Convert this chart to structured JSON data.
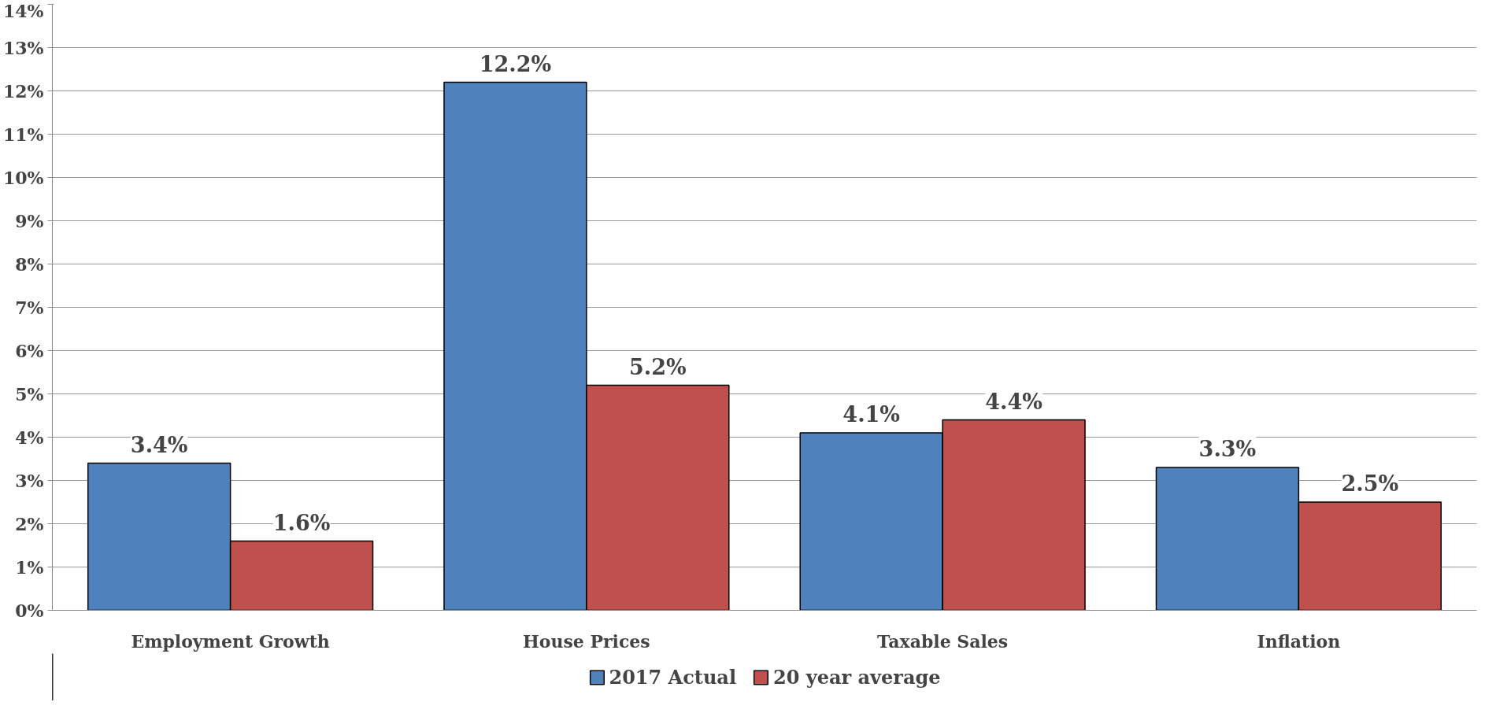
{
  "chart_data": {
    "type": "bar",
    "categories": [
      "Employment Growth",
      "House Prices",
      "Taxable Sales",
      "Inflation"
    ],
    "series": [
      {
        "name": "2017 Actual",
        "color": "#4f81bd",
        "values": [
          3.4,
          12.2,
          4.1,
          3.3
        ],
        "value_labels": [
          "3.4%",
          "12.2%",
          "4.1%",
          "3.3%"
        ]
      },
      {
        "name": "20 year average",
        "color": "#c0504d",
        "values": [
          1.6,
          5.2,
          4.4,
          2.5
        ],
        "value_labels": [
          "1.6%",
          "5.2%",
          "4.4%",
          "2.5%"
        ]
      }
    ],
    "ylim": [
      0,
      14
    ],
    "yticks": [
      {
        "value": 0,
        "label": "0%"
      },
      {
        "value": 1,
        "label": "1%"
      },
      {
        "value": 2,
        "label": "2%"
      },
      {
        "value": 3,
        "label": "3%"
      },
      {
        "value": 4,
        "label": "4%"
      },
      {
        "value": 5,
        "label": "5%"
      },
      {
        "value": 6,
        "label": "6%"
      },
      {
        "value": 7,
        "label": "7%"
      },
      {
        "value": 8,
        "label": "8%"
      },
      {
        "value": 9,
        "label": "9%"
      },
      {
        "value": 10,
        "label": "10%"
      },
      {
        "value": 11,
        "label": "11%"
      },
      {
        "value": 12,
        "label": "12%"
      },
      {
        "value": 13,
        "label": "13%"
      },
      {
        "value": 14,
        "label": "14%"
      }
    ],
    "grid": "y",
    "legend": "bottom"
  }
}
